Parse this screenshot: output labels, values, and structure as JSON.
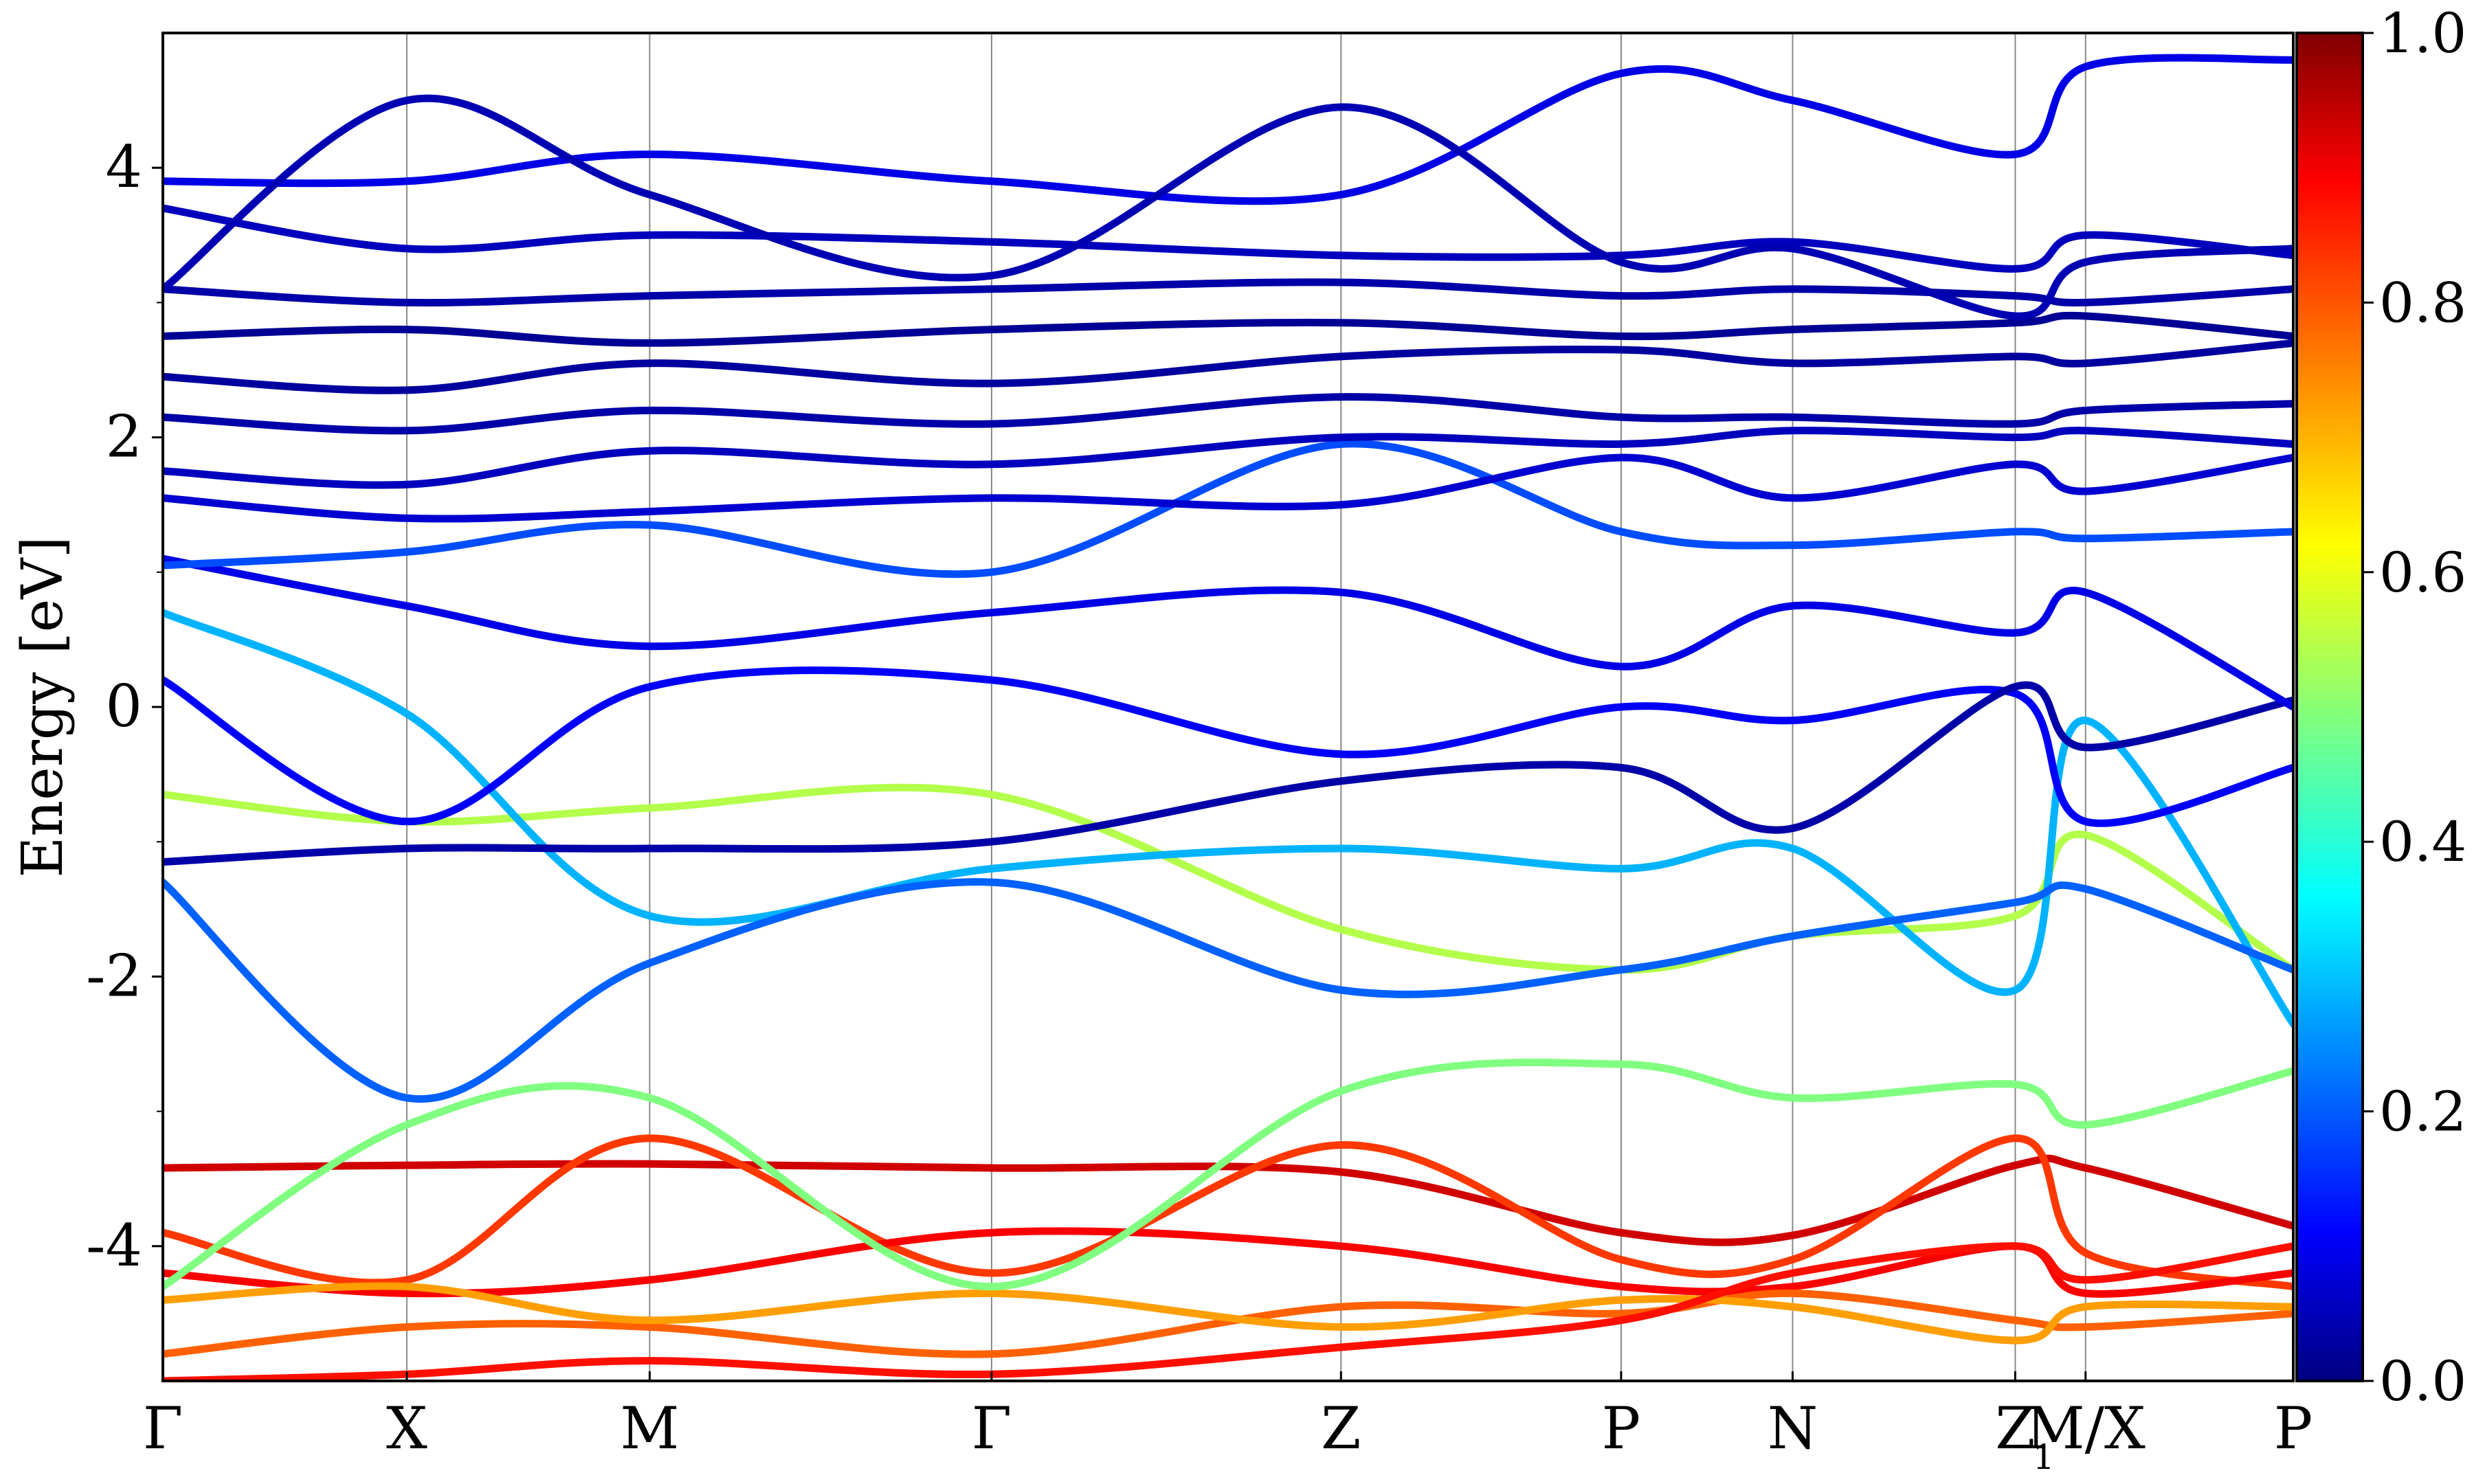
{
  "chart_data": {
    "type": "line",
    "ylabel": "Energy [eV]",
    "ylim": [
      -5,
      5
    ],
    "y_ticks": [
      4,
      2,
      0,
      -2,
      -4
    ],
    "y_tick_labels": [
      "4",
      "2",
      "0",
      "-2",
      "-4"
    ],
    "x_range": [
      0,
      1
    ],
    "kpoints": [
      {
        "label": "Γ",
        "x": 0.0
      },
      {
        "label": "X",
        "x": 0.1145
      },
      {
        "label": "M",
        "x": 0.2285
      },
      {
        "label": "Γ",
        "x": 0.389
      },
      {
        "label": "Z",
        "x": 0.553
      },
      {
        "label": "P",
        "x": 0.6845
      },
      {
        "label": "N",
        "x": 0.765
      },
      {
        "label": "Z",
        "x": 0.8695
      },
      {
        "label": "M/X",
        "x": 0.9025
      },
      {
        "label": "P",
        "x": 1.0
      }
    ],
    "subscript_1": "1",
    "colorbar": {
      "colormap": "jet",
      "range": [
        0.0,
        1.0
      ],
      "ticks": [
        1.0,
        0.8,
        0.6,
        0.4,
        0.2,
        0.0
      ],
      "tick_labels": [
        "1.0",
        "0.8",
        "0.6",
        "0.4",
        "0.2",
        "0.0"
      ]
    },
    "series": [
      {
        "x": [
          0.0,
          0.1145,
          0.2285,
          0.389,
          0.553,
          0.6845,
          0.765,
          0.8695,
          0.9025,
          1.0
        ],
        "values": [
          -3.42,
          -3.4,
          -3.39,
          -3.42,
          -3.45,
          -3.9,
          -3.92,
          -3.4,
          -3.42,
          -3.85
        ],
        "weight": 0.92
      },
      {
        "x": [
          0.0,
          0.1145,
          0.2285,
          0.389,
          0.553,
          0.6845,
          0.765,
          0.8695,
          0.9025,
          1.0
        ],
        "values": [
          -3.9,
          -4.25,
          -3.2,
          -4.2,
          -3.25,
          -4.1,
          -4.1,
          -3.2,
          -4.05,
          -4.3
        ],
        "weight": 0.82
      },
      {
        "x": [
          0.0,
          0.1145,
          0.2285,
          0.389,
          0.553,
          0.6845,
          0.765,
          0.8695,
          0.9025,
          1.0
        ],
        "values": [
          -4.2,
          -4.35,
          -4.25,
          -3.9,
          -4.0,
          -4.3,
          -4.3,
          -4.0,
          -4.35,
          -4.2
        ],
        "weight": 0.88
      },
      {
        "x": [
          0.0,
          0.1145,
          0.2285,
          0.389,
          0.553,
          0.6845,
          0.765,
          0.8695,
          0.9025,
          1.0
        ],
        "values": [
          -4.8,
          -4.6,
          -4.6,
          -4.8,
          -4.45,
          -4.5,
          -4.35,
          -4.55,
          -4.6,
          -4.5
        ],
        "weight": 0.78
      },
      {
        "x": [
          0.0,
          0.1145,
          0.2285,
          0.389,
          0.553,
          0.6845,
          0.765,
          0.8695,
          0.9025,
          1.0
        ],
        "values": [
          -4.4,
          -4.3,
          -4.55,
          -4.35,
          -4.6,
          -4.4,
          -4.45,
          -4.7,
          -4.45,
          -4.45
        ],
        "weight": 0.72
      },
      {
        "x": [
          0.0,
          0.1145,
          0.2285,
          0.389,
          0.553,
          0.6845,
          0.765,
          0.8695,
          0.9025,
          1.0
        ],
        "values": [
          -5.0,
          -4.95,
          -4.85,
          -4.95,
          -4.75,
          -4.55,
          -4.2,
          -4.0,
          -4.25,
          -4.0
        ],
        "weight": 0.86
      },
      {
        "x": [
          0.0,
          0.1145,
          0.2285,
          0.389,
          0.553,
          0.6845,
          0.765,
          0.8695,
          0.9025,
          1.0
        ],
        "values": [
          -4.3,
          -3.1,
          -2.9,
          -4.3,
          -2.85,
          -2.65,
          -2.9,
          -2.8,
          -3.1,
          -2.7
        ],
        "weight": 0.5
      },
      {
        "x": [
          0.0,
          0.1145,
          0.2285,
          0.389,
          0.553,
          0.6845,
          0.765,
          0.8695,
          0.9025,
          1.0
        ],
        "values": [
          -0.65,
          -0.85,
          -0.75,
          -0.65,
          -1.65,
          -1.95,
          -1.7,
          -1.55,
          -0.95,
          -1.95
        ],
        "weight": 0.55
      },
      {
        "x": [
          0.0,
          0.1145,
          0.2285,
          0.389,
          0.553,
          0.6845,
          0.765,
          0.8695,
          0.9025,
          1.0
        ],
        "values": [
          0.7,
          -0.05,
          -1.55,
          -1.2,
          -1.05,
          -1.2,
          -1.05,
          -2.1,
          -0.1,
          -2.35
        ],
        "weight": 0.3
      },
      {
        "x": [
          0.0,
          0.1145,
          0.2285,
          0.389,
          0.553,
          0.6845,
          0.765,
          0.8695,
          0.9025,
          1.0
        ],
        "values": [
          -1.3,
          -2.9,
          -1.9,
          -1.3,
          -2.1,
          -1.95,
          -1.7,
          -1.45,
          -1.35,
          -1.95
        ],
        "weight": 0.22
      },
      {
        "x": [
          0.0,
          0.1145,
          0.2285,
          0.389,
          0.553,
          0.6845,
          0.765,
          0.8695,
          0.9025,
          1.0
        ],
        "values": [
          0.2,
          -0.85,
          0.15,
          0.2,
          -0.35,
          0.0,
          -0.1,
          0.1,
          -0.85,
          -0.45
        ],
        "weight": 0.12
      },
      {
        "x": [
          0.0,
          0.1145,
          0.2285,
          0.389,
          0.553,
          0.6845,
          0.765,
          0.8695,
          0.9025,
          1.0
        ],
        "values": [
          -1.15,
          -1.05,
          -1.05,
          -1.0,
          -0.55,
          -0.45,
          -0.9,
          0.15,
          -0.3,
          0.05
        ],
        "weight": 0.04
      },
      {
        "x": [
          0.0,
          0.1145,
          0.2285,
          0.389,
          0.553,
          0.6845,
          0.765,
          0.8695,
          0.9025,
          1.0
        ],
        "values": [
          1.1,
          0.75,
          0.45,
          0.7,
          0.85,
          0.3,
          0.75,
          0.55,
          0.85,
          0.0
        ],
        "weight": 0.1
      },
      {
        "x": [
          0.0,
          0.1145,
          0.2285,
          0.389,
          0.553,
          0.6845,
          0.765,
          0.8695,
          0.9025,
          1.0
        ],
        "values": [
          1.05,
          1.15,
          1.35,
          1.0,
          1.95,
          1.3,
          1.2,
          1.3,
          1.25,
          1.3
        ],
        "weight": 0.2
      },
      {
        "x": [
          0.0,
          0.1145,
          0.2285,
          0.389,
          0.553,
          0.6845,
          0.765,
          0.8695,
          0.9025,
          1.0
        ],
        "values": [
          1.55,
          1.4,
          1.45,
          1.55,
          1.5,
          1.85,
          1.55,
          1.8,
          1.6,
          1.85
        ],
        "weight": 0.08
      },
      {
        "x": [
          0.0,
          0.1145,
          0.2285,
          0.389,
          0.553,
          0.6845,
          0.765,
          0.8695,
          0.9025,
          1.0
        ],
        "values": [
          1.75,
          1.65,
          1.9,
          1.8,
          2.0,
          1.95,
          2.05,
          2.0,
          2.05,
          1.95
        ],
        "weight": 0.06
      },
      {
        "x": [
          0.0,
          0.1145,
          0.2285,
          0.389,
          0.553,
          0.6845,
          0.765,
          0.8695,
          0.9025,
          1.0
        ],
        "values": [
          2.15,
          2.05,
          2.2,
          2.1,
          2.3,
          2.15,
          2.15,
          2.1,
          2.2,
          2.25
        ],
        "weight": 0.04
      },
      {
        "x": [
          0.0,
          0.1145,
          0.2285,
          0.389,
          0.553,
          0.6845,
          0.765,
          0.8695,
          0.9025,
          1.0
        ],
        "values": [
          2.45,
          2.35,
          2.55,
          2.4,
          2.6,
          2.65,
          2.55,
          2.6,
          2.55,
          2.7
        ],
        "weight": 0.03
      },
      {
        "x": [
          0.0,
          0.1145,
          0.2285,
          0.389,
          0.553,
          0.6845,
          0.765,
          0.8695,
          0.9025,
          1.0
        ],
        "values": [
          2.75,
          2.8,
          2.7,
          2.8,
          2.85,
          2.75,
          2.8,
          2.85,
          2.9,
          2.75
        ],
        "weight": 0.02
      },
      {
        "x": [
          0.0,
          0.1145,
          0.2285,
          0.389,
          0.553,
          0.6845,
          0.765,
          0.8695,
          0.9025,
          1.0
        ],
        "values": [
          3.1,
          3.0,
          3.05,
          3.1,
          3.15,
          3.05,
          3.1,
          3.05,
          3.0,
          3.1
        ],
        "weight": 0.04
      },
      {
        "x": [
          0.0,
          0.1145,
          0.2285,
          0.389,
          0.553,
          0.6845,
          0.765,
          0.8695,
          0.9025,
          1.0
        ],
        "values": [
          3.7,
          3.4,
          3.5,
          3.45,
          3.35,
          3.35,
          3.45,
          3.25,
          3.5,
          3.35
        ],
        "weight": 0.06
      },
      {
        "x": [
          0.0,
          0.1145,
          0.2285,
          0.389,
          0.553,
          0.6845,
          0.765,
          0.8695,
          0.9025,
          1.0
        ],
        "values": [
          3.9,
          3.9,
          4.1,
          3.9,
          3.8,
          4.7,
          4.5,
          4.1,
          4.75,
          4.8
        ],
        "weight": 0.1
      },
      {
        "x": [
          0.0,
          0.1145,
          0.2285,
          0.389,
          0.553,
          0.6845,
          0.765,
          0.8695,
          0.9025,
          1.0
        ],
        "values": [
          3.1,
          4.5,
          3.8,
          3.2,
          4.45,
          3.3,
          3.4,
          2.9,
          3.3,
          3.4
        ],
        "weight": 0.05
      }
    ]
  }
}
